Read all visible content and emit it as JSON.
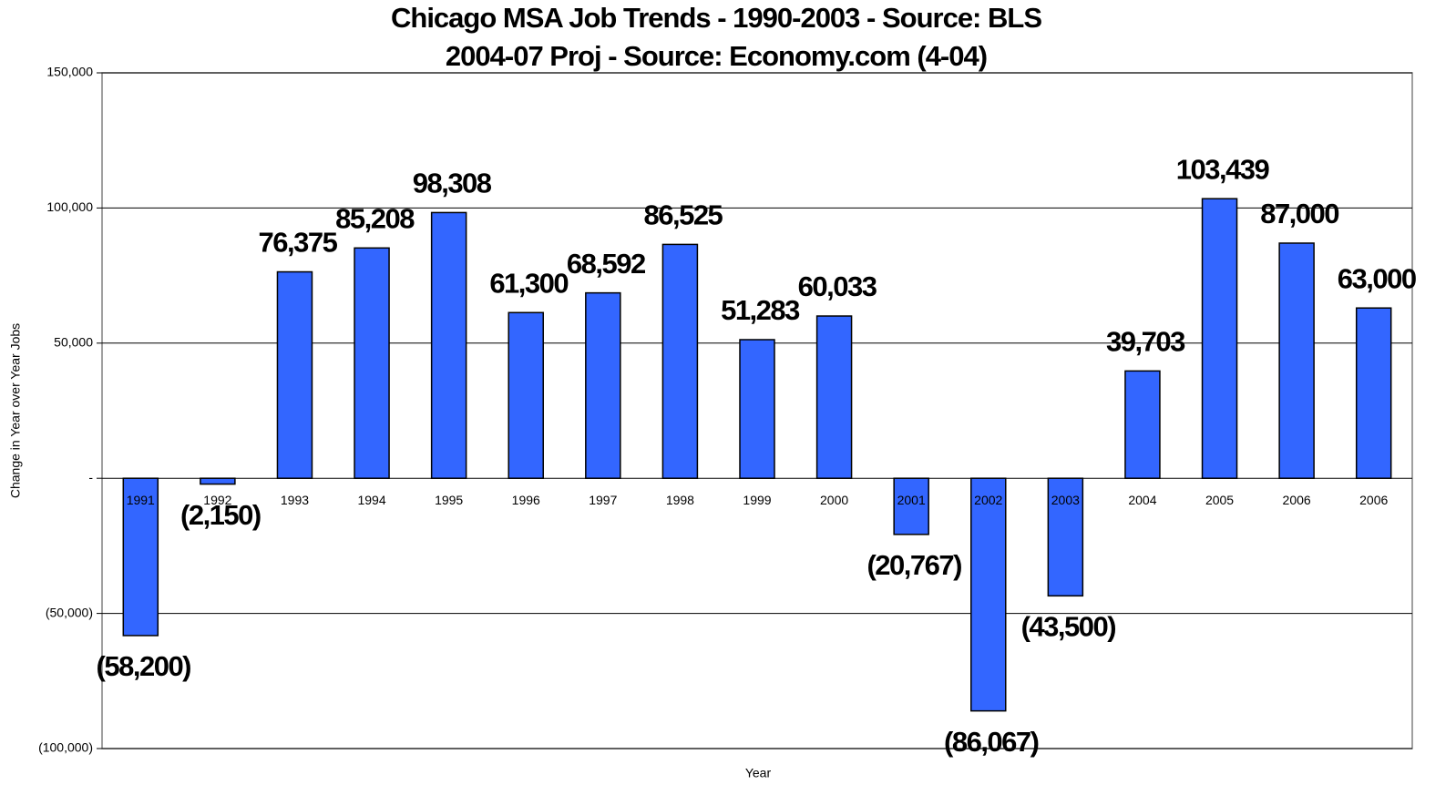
{
  "chart_data": {
    "type": "bar",
    "title": "Chicago MSA Job Trends - 1990-2003 - Source: BLS",
    "subtitle": "2004-07 Proj - Source: Economy.com (4-04)",
    "x_label": "Year",
    "y_label": "Change in Year over Year Jobs",
    "categories": [
      "1991",
      "1992",
      "1993",
      "1994",
      "1995",
      "1996",
      "1997",
      "1998",
      "1999",
      "2000",
      "2001",
      "2002",
      "2003",
      "2004",
      "2005",
      "2006",
      "2006"
    ],
    "values": [
      -58200,
      -2150,
      76375,
      85208,
      98308,
      61300,
      68592,
      86525,
      51283,
      60033,
      -20767,
      -86067,
      -43500,
      39703,
      103439,
      87000,
      63000
    ],
    "value_labels": [
      "(58,200)",
      "(2,150)",
      "76,375",
      "85,208",
      "98,308",
      "61,300",
      "68,592",
      "86,525",
      "51,283",
      "60,033",
      "(20,767)",
      "(86,067)",
      "(43,500)",
      "39,703",
      "103,439",
      "87,000",
      "63,000"
    ],
    "color": "#3366ff",
    "ylim": [
      -100000,
      150000
    ],
    "yticks": [
      {
        "value": 150000,
        "label": "150,000"
      },
      {
        "value": 100000,
        "label": "100,000"
      },
      {
        "value": 50000,
        "label": "50,000"
      },
      {
        "value": 0,
        "label": "-"
      },
      {
        "value": -50000,
        "label": "(50,000)"
      },
      {
        "value": -100000,
        "label": "(100,000)"
      }
    ],
    "grid": true
  }
}
